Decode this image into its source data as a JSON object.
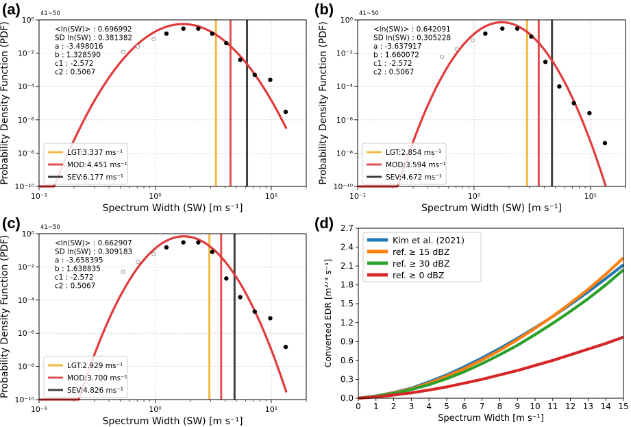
{
  "figure": {
    "colors": {
      "curve": "#e03a3a",
      "lgt": "#f5b942",
      "mod": "#e05050",
      "sev": "#404040",
      "grid": "#c8c8c8",
      "filled_dot": "#000000",
      "open_dot": "#999999"
    }
  },
  "chart_data": [
    {
      "panel": "a",
      "panel_label": "(a)",
      "type": "line",
      "xscale": "log",
      "yscale": "log",
      "xlim": [
        0.1,
        20
      ],
      "ylim": [
        1e-10,
        1
      ],
      "xlabel": "Spectrum Width (SW) [m s⁻¹]",
      "ylabel": "Probability Density Function (PDF)",
      "corner_note": "41~50",
      "x_tick_labels": [
        "10⁻¹",
        "10⁰",
        "10¹"
      ],
      "y_tick_labels": [
        "10⁻¹⁰",
        "10⁻⁸",
        "10⁻⁶",
        "10⁻⁴",
        "10⁻²",
        "10⁰"
      ],
      "stats": [
        "<ln(SW)> : 0.696992",
        "SD ln(SW) : 0.381382",
        "a : -3.498016",
        "b : 1.328590",
        "c1 : -2.572",
        "c2 : 0.5067"
      ],
      "mu": 0.696992,
      "sigma": 0.381382,
      "fit_range": [
        0.1,
        13.5
      ],
      "thresholds": [
        {
          "name": "LGT",
          "value": 3.337,
          "label": "LGT:3.337 ms⁻¹"
        },
        {
          "name": "MOD",
          "value": 4.451,
          "label": "MOD:4.451 ms⁻¹"
        },
        {
          "name": "SEV",
          "value": 6.177,
          "label": "SEV:6.177 ms⁻¹"
        }
      ],
      "open_points": [
        [
          0.53,
          0.012
        ],
        [
          0.71,
          0.025
        ],
        [
          0.97,
          0.07
        ]
      ],
      "filled_points": [
        [
          1.25,
          0.15
        ],
        [
          1.75,
          0.3
        ],
        [
          2.35,
          0.3
        ],
        [
          3.1,
          0.15
        ],
        [
          4.1,
          0.04
        ],
        [
          5.4,
          0.004
        ],
        [
          7.2,
          0.0005
        ],
        [
          9.8,
          0.00025
        ],
        [
          13.3,
          3e-06
        ]
      ]
    },
    {
      "panel": "b",
      "panel_label": "(b)",
      "type": "line",
      "xscale": "log",
      "yscale": "log",
      "xlim": [
        0.1,
        20
      ],
      "ylim": [
        1e-10,
        1
      ],
      "xlabel": "Spectrum Width (SW) [m s⁻¹]",
      "ylabel": "Probability Density Function (PDF)",
      "corner_note": "41~50",
      "x_tick_labels": [
        "10⁻¹",
        "10⁰",
        "10¹"
      ],
      "y_tick_labels": [
        "10⁻¹⁰",
        "10⁻⁸",
        "10⁻⁶",
        "10⁻⁴",
        "10⁻²",
        "10⁰"
      ],
      "stats": [
        "<ln(SW)> : 0.642091",
        "SD ln(SW) : 0.305228",
        "a : -3.637917",
        "b : 1.660072",
        "c1 : -2.572",
        "c2 : 0.5067"
      ],
      "mu": 0.642091,
      "sigma": 0.305228,
      "fit_range": [
        0.1,
        13.5
      ],
      "thresholds": [
        {
          "name": "LGT",
          "value": 2.854,
          "label": "LGT:2.854 ms⁻¹"
        },
        {
          "name": "MOD",
          "value": 3.594,
          "label": "MOD:3.594 ms⁻¹"
        },
        {
          "name": "SEV",
          "value": 4.672,
          "label": "SEV:4.672 ms⁻¹"
        }
      ],
      "open_points": [
        [
          0.53,
          0.006
        ],
        [
          0.71,
          0.018
        ],
        [
          0.97,
          0.06
        ]
      ],
      "filled_points": [
        [
          1.25,
          0.15
        ],
        [
          1.75,
          0.3
        ],
        [
          2.35,
          0.3
        ],
        [
          3.1,
          0.1
        ],
        [
          4.1,
          0.003
        ],
        [
          5.4,
          0.0001
        ],
        [
          7.2,
          1e-05
        ],
        [
          9.8,
          2.5e-06
        ],
        [
          13.3,
          4e-08
        ]
      ]
    },
    {
      "panel": "c",
      "panel_label": "(c)",
      "type": "line",
      "xscale": "log",
      "yscale": "log",
      "xlim": [
        0.1,
        20
      ],
      "ylim": [
        1e-10,
        1
      ],
      "xlabel": "Spectrum Width (SW) [m s⁻¹]",
      "ylabel": "Probability Density Function (PDF)",
      "corner_note": "41~50",
      "x_tick_labels": [
        "10⁻¹",
        "10⁰",
        "10¹"
      ],
      "y_tick_labels": [
        "10⁻¹⁰",
        "10⁻⁸",
        "10⁻⁶",
        "10⁻⁴",
        "10⁻²",
        "10⁰"
      ],
      "stats": [
        "<ln(SW)> : 0.662907",
        "SD ln(SW) : 0.309183",
        "a : -3.658395",
        "b : 1.638835",
        "c1 : -2.572",
        "c2 : 0.5067"
      ],
      "mu": 0.662907,
      "sigma": 0.309183,
      "fit_range": [
        0.1,
        13.5
      ],
      "thresholds": [
        {
          "name": "LGT",
          "value": 2.929,
          "label": "LGT:2.929 ms⁻¹"
        },
        {
          "name": "MOD",
          "value": 3.7,
          "label": "MOD:3.700 ms⁻¹"
        },
        {
          "name": "SEV",
          "value": 4.826,
          "label": "SEV:4.826 ms⁻¹"
        }
      ],
      "open_points": [
        [
          0.53,
          0.005
        ],
        [
          0.71,
          0.02
        ],
        [
          0.97,
          0.06
        ]
      ],
      "filled_points": [
        [
          1.25,
          0.15
        ],
        [
          1.75,
          0.3
        ],
        [
          2.35,
          0.3
        ],
        [
          3.1,
          0.08
        ],
        [
          4.1,
          0.002
        ],
        [
          5.4,
          0.00015
        ],
        [
          7.2,
          2e-05
        ],
        [
          9.8,
          8e-06
        ],
        [
          13.3,
          1.5e-07
        ]
      ]
    },
    {
      "panel": "d",
      "panel_label": "(d)",
      "type": "line",
      "xlim": [
        0,
        15
      ],
      "ylim": [
        0,
        2.7
      ],
      "xlabel": "Spectrum Width [m s⁻¹]",
      "ylabel": "Converted EDR [m²ᐟ³ s⁻¹]",
      "x_ticks": [
        0,
        1,
        2,
        3,
        4,
        5,
        6,
        7,
        8,
        9,
        10,
        11,
        12,
        13,
        14,
        15
      ],
      "y_ticks": [
        "0.0",
        "0.3",
        "0.6",
        "0.9",
        "1.2",
        "1.5",
        "1.8",
        "2.1",
        "2.4",
        "2.7"
      ],
      "series": [
        {
          "name": "Kim et al. (2021)",
          "color": "#1f77b4",
          "x": [
            0,
            1,
            2,
            3,
            4,
            5,
            6,
            7,
            8,
            9,
            10,
            11,
            12,
            13,
            14,
            15
          ],
          "values": [
            0.0,
            0.036,
            0.09,
            0.16,
            0.26,
            0.37,
            0.5,
            0.64,
            0.79,
            0.95,
            1.12,
            1.3,
            1.49,
            1.69,
            1.9,
            2.12
          ]
        },
        {
          "name": "ref. ≥ 15 dBZ",
          "color": "#ff7f0e",
          "x": [
            0,
            1,
            2,
            3,
            4,
            5,
            6,
            7,
            8,
            9,
            10,
            11,
            12,
            13,
            14,
            15
          ],
          "values": [
            0.0,
            0.034,
            0.085,
            0.15,
            0.24,
            0.35,
            0.47,
            0.61,
            0.76,
            0.93,
            1.11,
            1.3,
            1.51,
            1.73,
            1.97,
            2.23
          ]
        },
        {
          "name": "ref. ≥ 30 dBZ",
          "color": "#2ca02c",
          "x": [
            0,
            1,
            2,
            3,
            4,
            5,
            6,
            7,
            8,
            9,
            10,
            11,
            12,
            13,
            14,
            15
          ],
          "values": [
            0.0,
            0.03,
            0.076,
            0.138,
            0.215,
            0.31,
            0.42,
            0.55,
            0.69,
            0.84,
            1.01,
            1.19,
            1.38,
            1.58,
            1.8,
            2.04
          ]
        },
        {
          "name": "ref. ≥ 0 dBZ",
          "color": "#d62728",
          "x": [
            0,
            1,
            2,
            3,
            4,
            5,
            6,
            7,
            8,
            9,
            10,
            11,
            12,
            13,
            14,
            15
          ],
          "values": [
            0.0,
            0.02,
            0.05,
            0.085,
            0.13,
            0.18,
            0.24,
            0.3,
            0.37,
            0.44,
            0.52,
            0.6,
            0.69,
            0.78,
            0.87,
            0.97
          ]
        }
      ]
    }
  ]
}
